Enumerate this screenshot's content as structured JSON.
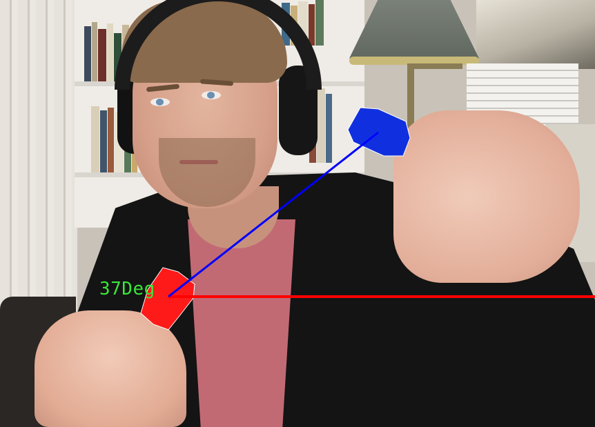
{
  "overlay": {
    "angle_text": "37Deg",
    "colors": {
      "angle_text": "#39e639",
      "reference_line": "#ff0000",
      "tracking_line": "#0000ff",
      "red_marker": "#ff1a1a",
      "blue_marker": "#1030e0"
    }
  },
  "scene": {
    "icons": [
      "red-marker-cap-icon",
      "blue-marker-cap-icon"
    ]
  }
}
